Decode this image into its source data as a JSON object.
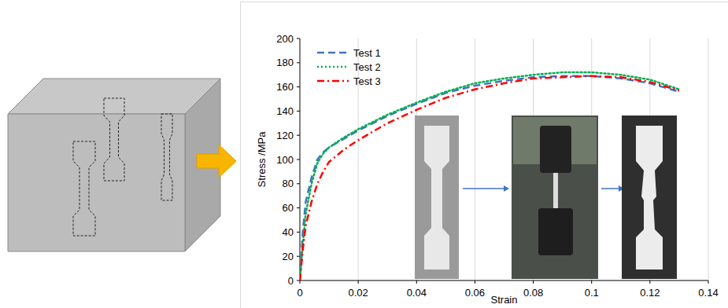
{
  "chart_data": {
    "type": "line",
    "x_label": "Strain",
    "y_label": "Stress /MPa",
    "x": [
      0,
      0.001,
      0.002,
      0.004,
      0.006,
      0.008,
      0.01,
      0.015,
      0.02,
      0.03,
      0.04,
      0.05,
      0.06,
      0.07,
      0.08,
      0.09,
      0.1,
      0.11,
      0.12,
      0.13
    ],
    "series": [
      {
        "name": "Test 1",
        "color": "#4472c4",
        "line_style": "dashed",
        "values": [
          0,
          40,
          65,
          85,
          100,
          106,
          110,
          117,
          124,
          136,
          146,
          155,
          161,
          165,
          168,
          169,
          169,
          167,
          163,
          156
        ]
      },
      {
        "name": "Test 2",
        "color": "#00b050",
        "line_style": "dotted",
        "values": [
          0,
          30,
          55,
          80,
          97,
          105,
          110,
          118,
          125,
          137,
          147,
          156,
          163,
          167,
          170,
          172,
          172,
          170,
          166,
          158
        ]
      },
      {
        "name": "Test 3",
        "color": "#ff0000",
        "line_style": "dashdot",
        "values": [
          0,
          25,
          45,
          65,
          80,
          90,
          98,
          108,
          116,
          130,
          141,
          151,
          158,
          163,
          167,
          168,
          169,
          168,
          164,
          157
        ]
      }
    ],
    "xlim": [
      0,
      0.14
    ],
    "xticks": [
      0,
      0.02,
      0.04,
      0.06,
      0.08,
      0.1,
      0.12,
      0.14
    ],
    "ylim": [
      0,
      200
    ],
    "yticks": [
      0,
      20,
      40,
      60,
      80,
      100,
      120,
      140,
      160,
      180,
      200
    ],
    "grid": true,
    "legend": "top-left"
  }
}
